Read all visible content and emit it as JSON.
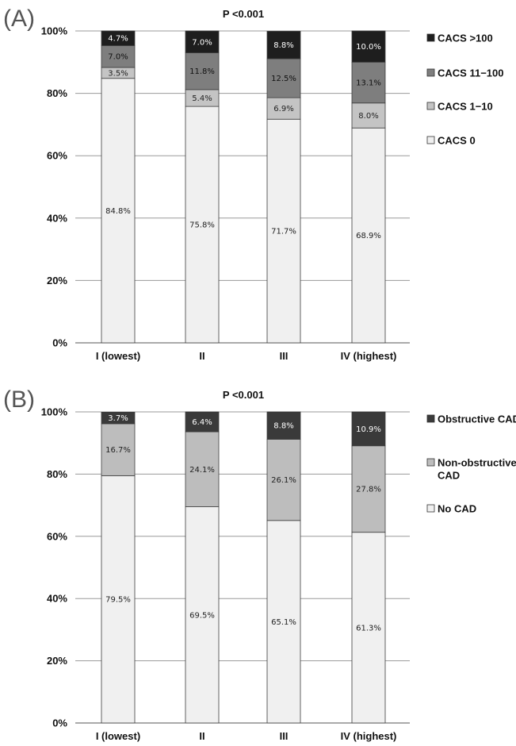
{
  "chart_data": [
    {
      "type": "bar",
      "stacked": true,
      "panel_label": "(A)",
      "title": "P <0.001",
      "categories": [
        "I (lowest)",
        "II",
        "III",
        "IV (highest)"
      ],
      "ylim": [
        0,
        100
      ],
      "yticks": [
        "0%",
        "20%",
        "40%",
        "60%",
        "80%",
        "100%"
      ],
      "grid": true,
      "legend_position": "right",
      "series": [
        {
          "name": "CACS 0",
          "color": "#f0f0f0",
          "text_color": "#222222",
          "values": [
            84.8,
            75.8,
            71.7,
            68.9
          ],
          "labels": [
            "84.8%",
            "75.8%",
            "71.7%",
            "68.9%"
          ]
        },
        {
          "name": "CACS 1−10",
          "color": "#c4c4c4",
          "text_color": "#222222",
          "values": [
            3.5,
            5.4,
            6.9,
            8.0
          ],
          "labels": [
            "3.5%",
            "5.4%",
            "6.9%",
            "8.0%"
          ]
        },
        {
          "name": "CACS 11−100",
          "color": "#7e7e7e",
          "text_color": "#111111",
          "values": [
            7.0,
            11.8,
            12.5,
            13.1
          ],
          "labels": [
            "7.0%",
            "11.8%",
            "12.5%",
            "13.1%"
          ]
        },
        {
          "name": "CACS >100",
          "color": "#1e1e1e",
          "text_color": "#ffffff",
          "values": [
            4.7,
            7.0,
            8.8,
            10.0
          ],
          "labels": [
            "4.7%",
            "7.0%",
            "8.8%",
            "10.0%"
          ]
        }
      ],
      "legend": [
        {
          "lines": [
            "CACS >100"
          ],
          "color": "#1e1e1e"
        },
        {
          "lines": [
            "CACS 11−100"
          ],
          "color": "#7e7e7e"
        },
        {
          "lines": [
            "CACS 1−10"
          ],
          "color": "#c4c4c4"
        },
        {
          "lines": [
            "CACS 0"
          ],
          "color": "#f0f0f0"
        }
      ]
    },
    {
      "type": "bar",
      "stacked": true,
      "panel_label": "(B)",
      "title": "P <0.001",
      "categories": [
        "I (lowest)",
        "II",
        "III",
        "IV (highest)"
      ],
      "ylim": [
        0,
        100
      ],
      "yticks": [
        "0%",
        "20%",
        "40%",
        "60%",
        "80%",
        "100%"
      ],
      "grid": true,
      "legend_position": "right",
      "series": [
        {
          "name": "No CAD",
          "color": "#f0f0f0",
          "text_color": "#222222",
          "values": [
            79.5,
            69.5,
            65.1,
            61.3
          ],
          "labels": [
            "79.5%",
            "69.5%",
            "65.1%",
            "61.3%"
          ]
        },
        {
          "name": "Non-obstructive CAD",
          "color": "#bdbdbd",
          "text_color": "#222222",
          "values": [
            16.7,
            24.1,
            26.1,
            27.8
          ],
          "labels": [
            "16.7%",
            "24.1%",
            "26.1%",
            "27.8%"
          ]
        },
        {
          "name": "Obstructive CAD",
          "color": "#3a3a3a",
          "text_color": "#ffffff",
          "values": [
            3.7,
            6.4,
            8.8,
            10.9
          ],
          "labels": [
            "3.7%",
            "6.4%",
            "8.8%",
            "10.9%"
          ]
        }
      ],
      "legend": [
        {
          "lines": [
            "Obstructive CAD"
          ],
          "color": "#3a3a3a"
        },
        {
          "lines": [
            "Non-obstructive",
            "CAD"
          ],
          "color": "#bdbdbd"
        },
        {
          "lines": [
            "No CAD"
          ],
          "color": "#f0f0f0"
        }
      ]
    }
  ]
}
